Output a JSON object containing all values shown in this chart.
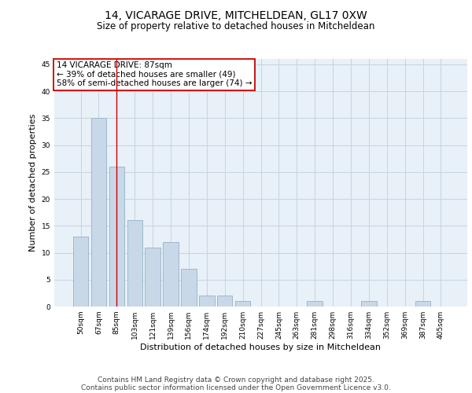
{
  "title1": "14, VICARAGE DRIVE, MITCHELDEAN, GL17 0XW",
  "title2": "Size of property relative to detached houses in Mitcheldean",
  "xlabel": "Distribution of detached houses by size in Mitcheldean",
  "ylabel": "Number of detached properties",
  "categories": [
    "50sqm",
    "67sqm",
    "85sqm",
    "103sqm",
    "121sqm",
    "139sqm",
    "156sqm",
    "174sqm",
    "192sqm",
    "210sqm",
    "227sqm",
    "245sqm",
    "263sqm",
    "281sqm",
    "298sqm",
    "316sqm",
    "334sqm",
    "352sqm",
    "369sqm",
    "387sqm",
    "405sqm"
  ],
  "values": [
    13,
    35,
    26,
    16,
    11,
    12,
    7,
    2,
    2,
    1,
    0,
    0,
    0,
    1,
    0,
    0,
    1,
    0,
    0,
    1,
    0
  ],
  "bar_color": "#c8d8e8",
  "bar_edge_color": "#a0b8cc",
  "bar_linewidth": 0.7,
  "grid_color": "#c8d4de",
  "bg_color": "#e8f0f8",
  "red_line_index": 2,
  "ylim": [
    0,
    46
  ],
  "yticks": [
    0,
    5,
    10,
    15,
    20,
    25,
    30,
    35,
    40,
    45
  ],
  "annotation_title": "14 VICARAGE DRIVE: 87sqm",
  "annotation_line1": "← 39% of detached houses are smaller (49)",
  "annotation_line2": "58% of semi-detached houses are larger (74) →",
  "annotation_box_color": "#ffffff",
  "annotation_box_edge": "#cc0000",
  "footer_line1": "Contains HM Land Registry data © Crown copyright and database right 2025.",
  "footer_line2": "Contains public sector information licensed under the Open Government Licence v3.0.",
  "title1_fontsize": 10,
  "title2_fontsize": 8.5,
  "xlabel_fontsize": 8,
  "ylabel_fontsize": 8,
  "tick_fontsize": 6.5,
  "annotation_fontsize": 7.5,
  "footer_fontsize": 6.5
}
